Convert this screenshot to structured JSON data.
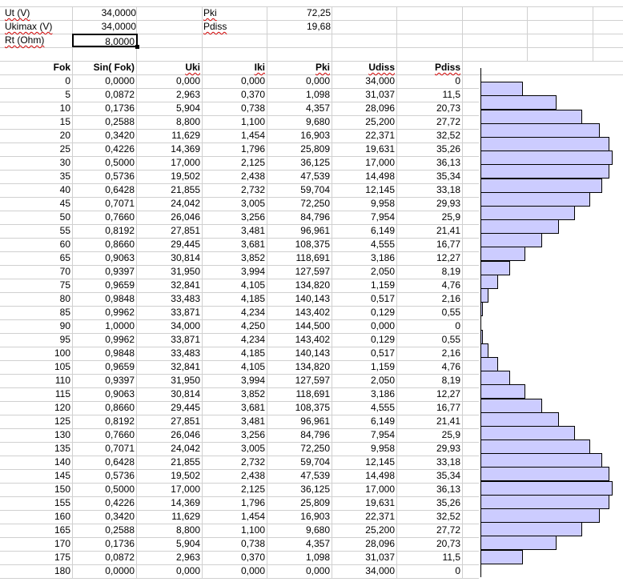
{
  "params": [
    {
      "label": "Ut (V)",
      "value": "34,0000"
    },
    {
      "label": "Ukimax (V)",
      "value": "34,0000"
    },
    {
      "label": "Rt (Ohm)",
      "value": "8,0000"
    }
  ],
  "results": [
    {
      "label": "Pki",
      "value": "72,25"
    },
    {
      "label": "Pdiss",
      "value": "19,68"
    }
  ],
  "headers": [
    "Fok",
    "Sin( Fok)",
    "Uki",
    "Iki",
    "Pki",
    "Udiss",
    "Pdiss"
  ],
  "rows": [
    [
      "0",
      "0,0000",
      "0,000",
      "0,000",
      "0,000",
      "34,000",
      "0"
    ],
    [
      "5",
      "0,0872",
      "2,963",
      "0,370",
      "1,098",
      "31,037",
      "11,5"
    ],
    [
      "10",
      "0,1736",
      "5,904",
      "0,738",
      "4,357",
      "28,096",
      "20,73"
    ],
    [
      "15",
      "0,2588",
      "8,800",
      "1,100",
      "9,680",
      "25,200",
      "27,72"
    ],
    [
      "20",
      "0,3420",
      "11,629",
      "1,454",
      "16,903",
      "22,371",
      "32,52"
    ],
    [
      "25",
      "0,4226",
      "14,369",
      "1,796",
      "25,809",
      "19,631",
      "35,26"
    ],
    [
      "30",
      "0,5000",
      "17,000",
      "2,125",
      "36,125",
      "17,000",
      "36,13"
    ],
    [
      "35",
      "0,5736",
      "19,502",
      "2,438",
      "47,539",
      "14,498",
      "35,34"
    ],
    [
      "40",
      "0,6428",
      "21,855",
      "2,732",
      "59,704",
      "12,145",
      "33,18"
    ],
    [
      "45",
      "0,7071",
      "24,042",
      "3,005",
      "72,250",
      "9,958",
      "29,93"
    ],
    [
      "50",
      "0,7660",
      "26,046",
      "3,256",
      "84,796",
      "7,954",
      "25,9"
    ],
    [
      "55",
      "0,8192",
      "27,851",
      "3,481",
      "96,961",
      "6,149",
      "21,41"
    ],
    [
      "60",
      "0,8660",
      "29,445",
      "3,681",
      "108,375",
      "4,555",
      "16,77"
    ],
    [
      "65",
      "0,9063",
      "30,814",
      "3,852",
      "118,691",
      "3,186",
      "12,27"
    ],
    [
      "70",
      "0,9397",
      "31,950",
      "3,994",
      "127,597",
      "2,050",
      "8,19"
    ],
    [
      "75",
      "0,9659",
      "32,841",
      "4,105",
      "134,820",
      "1,159",
      "4,76"
    ],
    [
      "80",
      "0,9848",
      "33,483",
      "4,185",
      "140,143",
      "0,517",
      "2,16"
    ],
    [
      "85",
      "0,9962",
      "33,871",
      "4,234",
      "143,402",
      "0,129",
      "0,55"
    ],
    [
      "90",
      "1,0000",
      "34,000",
      "4,250",
      "144,500",
      "0,000",
      "0"
    ],
    [
      "95",
      "0,9962",
      "33,871",
      "4,234",
      "143,402",
      "0,129",
      "0,55"
    ],
    [
      "100",
      "0,9848",
      "33,483",
      "4,185",
      "140,143",
      "0,517",
      "2,16"
    ],
    [
      "105",
      "0,9659",
      "32,841",
      "4,105",
      "134,820",
      "1,159",
      "4,76"
    ],
    [
      "110",
      "0,9397",
      "31,950",
      "3,994",
      "127,597",
      "2,050",
      "8,19"
    ],
    [
      "115",
      "0,9063",
      "30,814",
      "3,852",
      "118,691",
      "3,186",
      "12,27"
    ],
    [
      "120",
      "0,8660",
      "29,445",
      "3,681",
      "108,375",
      "4,555",
      "16,77"
    ],
    [
      "125",
      "0,8192",
      "27,851",
      "3,481",
      "96,961",
      "6,149",
      "21,41"
    ],
    [
      "130",
      "0,7660",
      "26,046",
      "3,256",
      "84,796",
      "7,954",
      "25,9"
    ],
    [
      "135",
      "0,7071",
      "24,042",
      "3,005",
      "72,250",
      "9,958",
      "29,93"
    ],
    [
      "140",
      "0,6428",
      "21,855",
      "2,732",
      "59,704",
      "12,145",
      "33,18"
    ],
    [
      "145",
      "0,5736",
      "19,502",
      "2,438",
      "47,539",
      "14,498",
      "35,34"
    ],
    [
      "150",
      "0,5000",
      "17,000",
      "2,125",
      "36,125",
      "17,000",
      "36,13"
    ],
    [
      "155",
      "0,4226",
      "14,369",
      "1,796",
      "25,809",
      "19,631",
      "35,26"
    ],
    [
      "160",
      "0,3420",
      "11,629",
      "1,454",
      "16,903",
      "22,371",
      "32,52"
    ],
    [
      "165",
      "0,2588",
      "8,800",
      "1,100",
      "9,680",
      "25,200",
      "27,72"
    ],
    [
      "170",
      "0,1736",
      "5,904",
      "0,738",
      "4,357",
      "28,096",
      "20,73"
    ],
    [
      "175",
      "0,0872",
      "2,963",
      "0,370",
      "1,098",
      "31,037",
      "11,5"
    ],
    [
      "180",
      "0,0000",
      "0,000",
      "0,000",
      "0,000",
      "34,000",
      "0"
    ]
  ],
  "chart_data": {
    "type": "bar",
    "orientation": "horizontal",
    "categories": [
      "0",
      "5",
      "10",
      "15",
      "20",
      "25",
      "30",
      "35",
      "40",
      "45",
      "50",
      "55",
      "60",
      "65",
      "70",
      "75",
      "80",
      "85",
      "90",
      "95",
      "100",
      "105",
      "110",
      "115",
      "120",
      "125",
      "130",
      "135",
      "140",
      "145",
      "150",
      "155",
      "160",
      "165",
      "170",
      "175",
      "180"
    ],
    "values": [
      0,
      11.5,
      20.73,
      27.72,
      32.52,
      35.26,
      36.13,
      35.34,
      33.18,
      29.93,
      25.9,
      21.41,
      16.77,
      12.27,
      8.19,
      4.76,
      2.16,
      0.55,
      0,
      0.55,
      2.16,
      4.76,
      8.19,
      12.27,
      16.77,
      21.41,
      25.9,
      29.93,
      33.18,
      35.34,
      36.13,
      35.26,
      32.52,
      27.72,
      20.73,
      11.5,
      0
    ],
    "bar_color": "#ccccff",
    "title": "",
    "xlabel": "",
    "ylabel": "",
    "xlim": [
      0,
      36.13
    ],
    "grid": false,
    "legend": "none"
  }
}
